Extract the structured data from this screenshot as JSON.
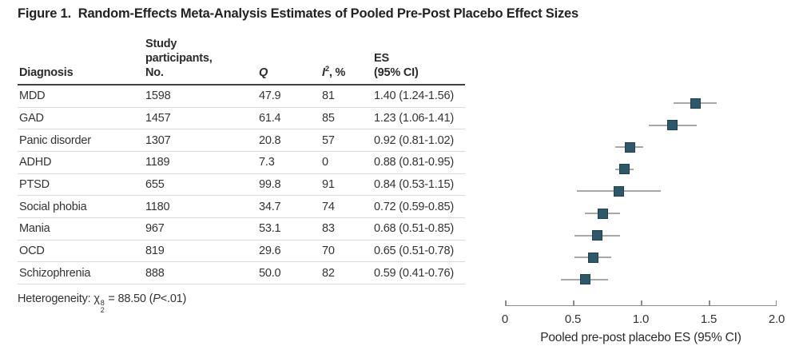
{
  "figure": {
    "title": "Figure 1.  Random-Effects Meta-Analysis Estimates of Pooled Pre-Post Placebo Effect Sizes"
  },
  "table": {
    "headers": {
      "diagnosis": "Diagnosis",
      "participants_line1": "Study",
      "participants_line2": "participants,",
      "participants_line3": "No.",
      "q": "Q",
      "i2_base": "I",
      "i2_sup": "2",
      "i2_rest": ", %",
      "es_line1": "ES",
      "es_line2": "(95% CI)"
    },
    "rows": [
      {
        "diagnosis": "MDD",
        "n": "1598",
        "q": "47.9",
        "i2": "81",
        "es": "1.40 (1.24-1.56)"
      },
      {
        "diagnosis": "GAD",
        "n": "1457",
        "q": "61.4",
        "i2": "85",
        "es": "1.23 (1.06-1.41)"
      },
      {
        "diagnosis": "Panic disorder",
        "n": "1307",
        "q": "20.8",
        "i2": "57",
        "es": "0.92 (0.81-1.02)"
      },
      {
        "diagnosis": "ADHD",
        "n": "1189",
        "q": "7.3",
        "i2": "0",
        "es": "0.88 (0.81-0.95)"
      },
      {
        "diagnosis": "PTSD",
        "n": "655",
        "q": "99.8",
        "i2": "91",
        "es": "0.84 (0.53-1.15)"
      },
      {
        "diagnosis": "Social phobia",
        "n": "1180",
        "q": "34.7",
        "i2": "74",
        "es": "0.72 (0.59-0.85)"
      },
      {
        "diagnosis": "Mania",
        "n": "967",
        "q": "53.1",
        "i2": "83",
        "es": "0.68 (0.51-0.85)"
      },
      {
        "diagnosis": "OCD",
        "n": "819",
        "q": "29.6",
        "i2": "70",
        "es": "0.65 (0.51-0.78)"
      },
      {
        "diagnosis": "Schizophrenia",
        "n": "888",
        "q": "50.0",
        "i2": "82",
        "es": "0.59 (0.41-0.76)"
      }
    ],
    "footer": {
      "het_prefix": "Heterogeneity: ",
      "het_chi": "χ",
      "het_sup": "8",
      "het_sub": "2",
      "het_eq": " = 88.50 (",
      "het_p": "P",
      "het_tail": "<.01)"
    }
  },
  "chart_data": {
    "type": "forest",
    "title": "",
    "xlabel": "Pooled pre-post placebo ES (95% CI)",
    "xlim": [
      0,
      2.0
    ],
    "xticks": [
      0,
      0.5,
      1.0,
      1.5,
      2.0
    ],
    "xtick_labels": [
      "0",
      "0.5",
      "1.0",
      "1.5",
      "2.0"
    ],
    "points": [
      {
        "label": "MDD",
        "es": 1.4,
        "lo": 1.24,
        "hi": 1.56
      },
      {
        "label": "GAD",
        "es": 1.23,
        "lo": 1.06,
        "hi": 1.41
      },
      {
        "label": "Panic disorder",
        "es": 0.92,
        "lo": 0.81,
        "hi": 1.02
      },
      {
        "label": "ADHD",
        "es": 0.88,
        "lo": 0.81,
        "hi": 0.95
      },
      {
        "label": "PTSD",
        "es": 0.84,
        "lo": 0.53,
        "hi": 1.15
      },
      {
        "label": "Social phobia",
        "es": 0.72,
        "lo": 0.59,
        "hi": 0.85
      },
      {
        "label": "Mania",
        "es": 0.68,
        "lo": 0.51,
        "hi": 0.85
      },
      {
        "label": "OCD",
        "es": 0.65,
        "lo": 0.51,
        "hi": 0.78
      },
      {
        "label": "Schizophrenia",
        "es": 0.59,
        "lo": 0.41,
        "hi": 0.76
      }
    ],
    "marker_color": "#2e586a",
    "marker_border_color": "#1f4150",
    "ci_color": "#a8a8a8",
    "axis_color": "#8c8c8c",
    "legend_position": "none",
    "grid": false
  }
}
